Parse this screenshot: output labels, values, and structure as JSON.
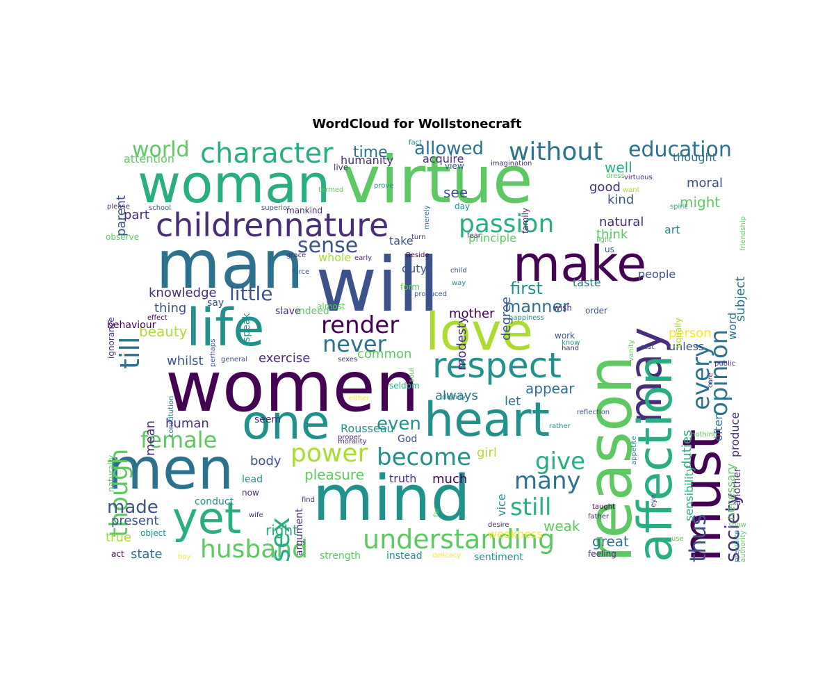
{
  "title": "WordCloud for Wollstonecraft",
  "palette": [
    "#440154",
    "#472d7b",
    "#3b528b",
    "#2c728e",
    "#21918c",
    "#28ae80",
    "#5ec962",
    "#addc30",
    "#fde725"
  ],
  "words": [
    {
      "t": "woman",
      "c": "#28ae80"
    },
    {
      "t": "virtue",
      "c": "#5ec962"
    },
    {
      "t": "man",
      "c": "#2c728e"
    },
    {
      "t": "will",
      "c": "#3b528b"
    },
    {
      "t": "make",
      "c": "#440154"
    },
    {
      "t": "may",
      "c": "#472d7b"
    },
    {
      "t": "childrennature",
      "c": "#472d7b"
    },
    {
      "t": "character",
      "c": "#28ae80"
    },
    {
      "t": "women",
      "c": "#440154"
    },
    {
      "t": "life",
      "c": "#21918c"
    },
    {
      "t": "love",
      "c": "#addc30"
    },
    {
      "t": "reason",
      "c": "#5ec962"
    },
    {
      "t": "must",
      "c": "#440154"
    },
    {
      "t": "affection",
      "c": "#28ae80"
    },
    {
      "t": "men",
      "c": "#2c728e"
    },
    {
      "t": "mind",
      "c": "#21918c"
    },
    {
      "t": "yet",
      "c": "#28ae80"
    },
    {
      "t": "heart",
      "c": "#21918c"
    },
    {
      "t": "one",
      "c": "#21918c"
    },
    {
      "t": "respect",
      "c": "#21918c"
    },
    {
      "t": "understanding",
      "c": "#5ec962"
    },
    {
      "t": "husband",
      "c": "#5ec962"
    },
    {
      "t": "without",
      "c": "#2c728e"
    },
    {
      "t": "education",
      "c": "#2c728e"
    },
    {
      "t": "world",
      "c": "#5ec962"
    },
    {
      "t": "allowed",
      "c": "#2c728e"
    },
    {
      "t": "time",
      "c": "#2c728e"
    },
    {
      "t": "passion",
      "c": "#28ae80"
    },
    {
      "t": "sense",
      "c": "#3b528b"
    },
    {
      "t": "till",
      "c": "#2c728e"
    },
    {
      "t": "though",
      "c": "#5ec962"
    },
    {
      "t": "render",
      "c": "#440154"
    },
    {
      "t": "never",
      "c": "#2c728e"
    },
    {
      "t": "female",
      "c": "#5ec962"
    },
    {
      "t": "power",
      "c": "#addc30"
    },
    {
      "t": "become",
      "c": "#21918c"
    },
    {
      "t": "give",
      "c": "#28ae80"
    },
    {
      "t": "many",
      "c": "#2c728e"
    },
    {
      "t": "still",
      "c": "#28ae80"
    },
    {
      "t": "sex",
      "c": "#28ae80"
    },
    {
      "t": "made",
      "c": "#3b528b"
    },
    {
      "t": "every",
      "c": "#2c728e"
    },
    {
      "t": "opinion",
      "c": "#2c728e"
    },
    {
      "t": "thus",
      "c": "#3b528b"
    },
    {
      "t": "society",
      "c": "#472d7b"
    },
    {
      "t": "little",
      "c": "#3b528b"
    },
    {
      "t": "knowledge",
      "c": "#472d7b"
    },
    {
      "t": "first",
      "c": "#21918c"
    },
    {
      "t": "manner",
      "c": "#2c728e"
    },
    {
      "t": "even",
      "c": "#21918c"
    },
    {
      "t": "great",
      "c": "#2c728e"
    },
    {
      "t": "state",
      "c": "#2c728e"
    },
    {
      "t": "present",
      "c": "#3b528b"
    },
    {
      "t": "true",
      "c": "#addc30"
    },
    {
      "t": "right",
      "c": "#28ae80"
    },
    {
      "t": "weak",
      "c": "#5ec962"
    },
    {
      "t": "pleasure",
      "c": "#5ec962"
    },
    {
      "t": "much",
      "c": "#440154"
    },
    {
      "t": "truth",
      "c": "#472d7b"
    },
    {
      "t": "body",
      "c": "#3b528b"
    },
    {
      "t": "girl",
      "c": "#addc30"
    },
    {
      "t": "exercise",
      "c": "#472d7b"
    },
    {
      "t": "common",
      "c": "#5ec962"
    },
    {
      "t": "always",
      "c": "#2c728e"
    },
    {
      "t": "appear",
      "c": "#2c728e"
    },
    {
      "t": "let",
      "c": "#2c728e"
    },
    {
      "t": "human",
      "c": "#472d7b"
    },
    {
      "t": "mean",
      "c": "#472d7b"
    },
    {
      "t": "beauty",
      "c": "#addc30"
    },
    {
      "t": "whilst",
      "c": "#3b528b"
    },
    {
      "t": "mother",
      "c": "#440154"
    },
    {
      "t": "duty",
      "c": "#3b528b"
    },
    {
      "t": "thing",
      "c": "#3b528b"
    },
    {
      "t": "natural",
      "c": "#472d7b"
    },
    {
      "t": "think",
      "c": "#5ec962"
    },
    {
      "t": "good",
      "c": "#472d7b"
    },
    {
      "t": "kind",
      "c": "#3b528b"
    },
    {
      "t": "well",
      "c": "#28ae80"
    },
    {
      "t": "might",
      "c": "#5ec962"
    },
    {
      "t": "moral",
      "c": "#3b528b"
    },
    {
      "t": "thought",
      "c": "#2c728e"
    },
    {
      "t": "see",
      "c": "#3b528b"
    },
    {
      "t": "acquire",
      "c": "#472d7b"
    },
    {
      "t": "humanity",
      "c": "#472d7b"
    },
    {
      "t": "attention",
      "c": "#5ec962"
    },
    {
      "t": "parent",
      "c": "#3b528b"
    },
    {
      "t": "part",
      "c": "#472d7b"
    },
    {
      "t": "principle",
      "c": "#5ec962"
    },
    {
      "t": "take",
      "c": "#3b528b"
    },
    {
      "t": "whole",
      "c": "#addc30"
    },
    {
      "t": "taste",
      "c": "#2c728e"
    },
    {
      "t": "degree",
      "c": "#3b528b"
    },
    {
      "t": "modesty",
      "c": "#472d7b"
    },
    {
      "t": "person",
      "c": "#fde725"
    },
    {
      "t": "unless",
      "c": "#3b528b"
    },
    {
      "t": "often",
      "c": "#2c728e"
    },
    {
      "t": "produce",
      "c": "#472d7b"
    },
    {
      "t": "word",
      "c": "#2c728e"
    },
    {
      "t": "subject",
      "c": "#2c728e"
    },
    {
      "t": "art",
      "c": "#21918c"
    },
    {
      "t": "people",
      "c": "#3b528b"
    },
    {
      "t": "duties",
      "c": "#28ae80"
    },
    {
      "t": "sensibility",
      "c": "#28ae80"
    },
    {
      "t": "necessary",
      "c": "#5ec962"
    },
    {
      "t": "another",
      "c": "#472d7b"
    },
    {
      "t": "weakness",
      "c": "#fde725"
    },
    {
      "t": "Rousseau",
      "c": "#21918c"
    },
    {
      "t": "God",
      "c": "#3b528b"
    },
    {
      "t": "seem",
      "c": "#472d7b"
    },
    {
      "t": "conduct",
      "c": "#21918c"
    },
    {
      "t": "lead",
      "c": "#21918c"
    },
    {
      "t": "now",
      "c": "#472d7b"
    },
    {
      "t": "object",
      "c": "#21918c"
    },
    {
      "t": "act",
      "c": "#440154"
    },
    {
      "t": "strength",
      "c": "#5ec962"
    },
    {
      "t": "instead",
      "c": "#21918c"
    },
    {
      "t": "sentiment",
      "c": "#21918c"
    },
    {
      "t": "feeling",
      "c": "#472d7b"
    },
    {
      "t": "argument",
      "c": "#472d7b"
    },
    {
      "t": "vice",
      "c": "#21918c"
    },
    {
      "t": "wife",
      "c": "#472d7b"
    },
    {
      "t": "find",
      "c": "#472d7b"
    },
    {
      "t": "say",
      "c": "#3b528b"
    },
    {
      "t": "speak",
      "c": "#21918c"
    },
    {
      "t": "slave",
      "c": "#472d7b"
    },
    {
      "t": "indeed",
      "c": "#5ec962"
    },
    {
      "t": "almost",
      "c": "#5ec962"
    },
    {
      "t": "naturally",
      "c": "#5ec962"
    },
    {
      "t": "behaviour",
      "c": "#440154"
    },
    {
      "t": "ignorance",
      "c": "#472d7b"
    },
    {
      "t": "observe",
      "c": "#5ec962"
    },
    {
      "t": "please",
      "c": "#472d7b"
    },
    {
      "t": "school",
      "c": "#3b528b"
    },
    {
      "t": "superior",
      "c": "#3b528b"
    },
    {
      "t": "mankind",
      "c": "#472d7b"
    },
    {
      "t": "live",
      "c": "#472d7b"
    },
    {
      "t": "fact",
      "c": "#21918c"
    },
    {
      "t": "termed",
      "c": "#5ec962"
    },
    {
      "t": "prove",
      "c": "#21918c"
    },
    {
      "t": "merely",
      "c": "#2c728e"
    },
    {
      "t": "view",
      "c": "#3b528b"
    },
    {
      "t": "day",
      "c": "#21918c"
    },
    {
      "t": "family",
      "c": "#472d7b"
    },
    {
      "t": "imagination",
      "c": "#472d7b"
    },
    {
      "t": "dress",
      "c": "#5ec962"
    },
    {
      "t": "virtuous",
      "c": "#472d7b"
    },
    {
      "t": "us",
      "c": "#3b528b"
    },
    {
      "t": "want",
      "c": "#addc30"
    },
    {
      "t": "spirit",
      "c": "#28ae80"
    },
    {
      "t": "friendship",
      "c": "#5ec962"
    },
    {
      "t": "light",
      "c": "#5ec962"
    },
    {
      "t": "grace",
      "c": "#472d7b"
    },
    {
      "t": "turn",
      "c": "#472d7b"
    },
    {
      "t": "early",
      "c": "#472d7b"
    },
    {
      "t": "Beside",
      "c": "#440154"
    },
    {
      "t": "fear",
      "c": "#472d7b"
    },
    {
      "t": "force",
      "c": "#3b528b"
    },
    {
      "t": "form",
      "c": "#5ec962"
    },
    {
      "t": "way",
      "c": "#21918c"
    },
    {
      "t": "child",
      "c": "#3b528b"
    },
    {
      "t": "produced",
      "c": "#3b528b"
    },
    {
      "t": "happiness",
      "c": "#21918c"
    },
    {
      "t": "wish",
      "c": "#472d7b"
    },
    {
      "t": "work",
      "c": "#3b528b"
    },
    {
      "t": "order",
      "c": "#3b528b"
    },
    {
      "t": "vanity",
      "c": "#5ec962"
    },
    {
      "t": "equally",
      "c": "#addc30"
    },
    {
      "t": "know",
      "c": "#21918c"
    },
    {
      "t": "hand",
      "c": "#472d7b"
    },
    {
      "t": "rest",
      "c": "#3b528b"
    },
    {
      "t": "care",
      "c": "#472d7b"
    },
    {
      "t": "public",
      "c": "#472d7b"
    },
    {
      "t": "effect",
      "c": "#440154"
    },
    {
      "t": "perhaps",
      "c": "#3b528b"
    },
    {
      "t": "general",
      "c": "#3b528b"
    },
    {
      "t": "constitution",
      "c": "#2c728e"
    },
    {
      "t": "sexes",
      "c": "#472d7b"
    },
    {
      "t": "soul",
      "c": "#5ec962"
    },
    {
      "t": "seldom",
      "c": "#28ae80"
    },
    {
      "t": "either",
      "c": "#fde725"
    },
    {
      "t": "dignity",
      "c": "#21918c"
    },
    {
      "t": "proper",
      "c": "#472d7b"
    },
    {
      "t": "morality",
      "c": "#472d7b"
    },
    {
      "t": "appetite",
      "c": "#21918c"
    },
    {
      "t": "reflection",
      "c": "#3b528b"
    },
    {
      "t": "rather",
      "c": "#21918c"
    },
    {
      "t": "nothing",
      "c": "#5ec962"
    },
    {
      "t": "father",
      "c": "#472d7b"
    },
    {
      "t": "taught",
      "c": "#440154"
    },
    {
      "t": "eye",
      "c": "#472d7b"
    },
    {
      "t": "desire",
      "c": "#472d7b"
    },
    {
      "t": "far",
      "c": "#5ec962"
    },
    {
      "t": "use",
      "c": "#5ec962"
    },
    {
      "t": "show",
      "c": "#5ec962"
    },
    {
      "t": "prejudice",
      "c": "#21918c"
    },
    {
      "t": "authority",
      "c": "#5ec962"
    },
    {
      "t": "delicacy",
      "c": "#fde725"
    },
    {
      "t": "boy",
      "c": "#fde725"
    }
  ]
}
